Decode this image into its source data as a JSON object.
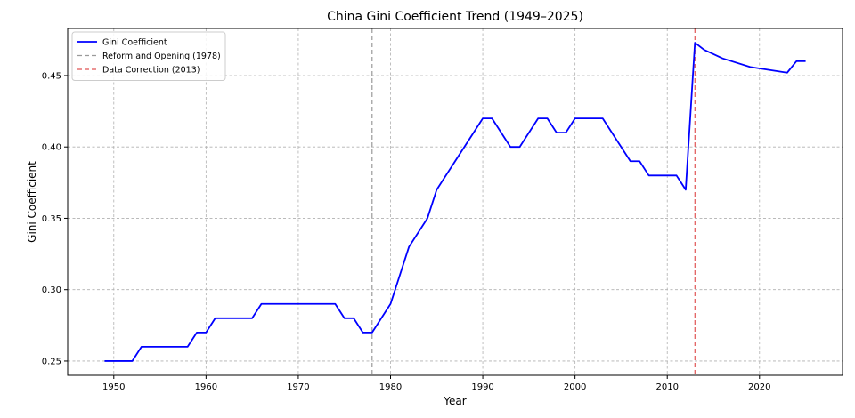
{
  "chart_data": {
    "type": "line",
    "title": "China Gini Coefficient Trend (1949–2025)",
    "xlabel": "Year",
    "ylabel": "Gini Coefficient",
    "xlim": [
      1945,
      2029
    ],
    "ylim": [
      0.24,
      0.483
    ],
    "xticks": [
      1950,
      1960,
      1970,
      1980,
      1990,
      2000,
      2010,
      2020
    ],
    "yticks": [
      0.25,
      0.3,
      0.35,
      0.4,
      0.45
    ],
    "ytick_labels": [
      "0.25",
      "0.30",
      "0.35",
      "0.40",
      "0.45"
    ],
    "grid": true,
    "legend_position": "top-left",
    "series": [
      {
        "name": "Gini Coefficient",
        "color": "#0000ff",
        "style": "solid",
        "x": [
          1949,
          1950,
          1951,
          1952,
          1953,
          1954,
          1955,
          1956,
          1957,
          1958,
          1959,
          1960,
          1961,
          1962,
          1963,
          1964,
          1965,
          1966,
          1967,
          1968,
          1969,
          1970,
          1971,
          1972,
          1973,
          1974,
          1975,
          1976,
          1977,
          1978,
          1980,
          1982,
          1984,
          1985,
          1990,
          1991,
          1993,
          1994,
          1996,
          1997,
          1998,
          1999,
          2000,
          2003,
          2006,
          2007,
          2008,
          2011,
          2012,
          2013,
          2014,
          2016,
          2019,
          2023,
          2024,
          2025
        ],
        "y": [
          0.25,
          0.25,
          0.25,
          0.25,
          0.26,
          0.26,
          0.26,
          0.26,
          0.26,
          0.26,
          0.27,
          0.27,
          0.28,
          0.28,
          0.28,
          0.28,
          0.28,
          0.29,
          0.29,
          0.29,
          0.29,
          0.29,
          0.29,
          0.29,
          0.29,
          0.29,
          0.28,
          0.28,
          0.27,
          0.27,
          0.29,
          0.33,
          0.35,
          0.37,
          0.42,
          0.42,
          0.4,
          0.4,
          0.42,
          0.42,
          0.41,
          0.41,
          0.42,
          0.42,
          0.39,
          0.39,
          0.38,
          0.38,
          0.37,
          0.473,
          0.468,
          0.462,
          0.456,
          0.452,
          0.46,
          0.46
        ]
      }
    ],
    "vlines": [
      {
        "name": "Reform and Opening (1978)",
        "x": 1978,
        "color": "#9a9a9a",
        "style": "dashed"
      },
      {
        "name": "Data Correction (2013)",
        "x": 2013,
        "color": "#e05555",
        "style": "dashed"
      }
    ]
  }
}
